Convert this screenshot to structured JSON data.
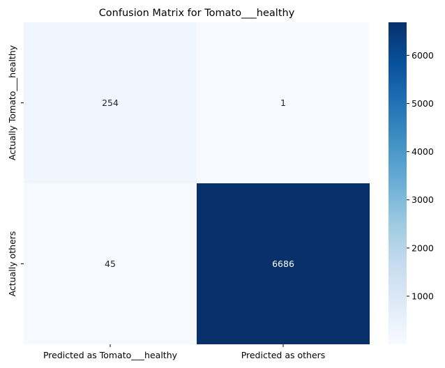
{
  "chart_data": {
    "type": "heatmap",
    "title": "Confusion Matrix for Tomato___healthy",
    "x_categories": [
      "Predicted as Tomato___healthy",
      "Predicted as others"
    ],
    "y_categories": [
      "Actually Tomato___healthy",
      "Actually others"
    ],
    "values": [
      [
        254,
        1
      ],
      [
        45,
        6686
      ]
    ],
    "colormap": "Blues",
    "colorbar": {
      "min": 1,
      "max": 6686,
      "ticks": [
        1000,
        2000,
        3000,
        4000,
        5000,
        6000
      ]
    },
    "grid": false
  }
}
